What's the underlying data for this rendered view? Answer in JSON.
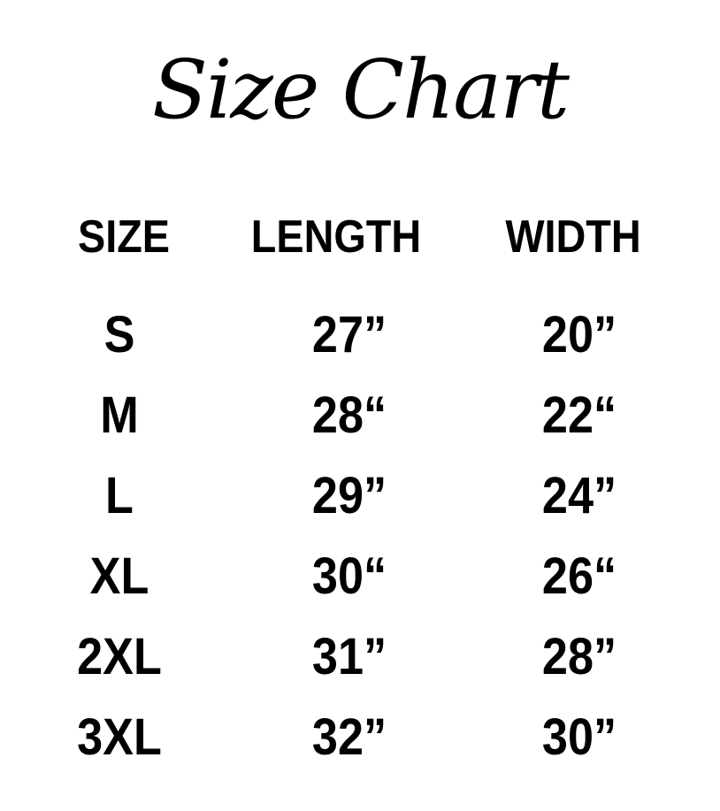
{
  "title": "Size Chart",
  "headers": [
    "SIZE",
    "LENGTH",
    "WIDTH"
  ],
  "rows": [
    [
      "S",
      "27”",
      "20”"
    ],
    [
      "M",
      "28“",
      "22“"
    ],
    [
      "L",
      "29”",
      "24”"
    ],
    [
      "XL",
      "30“",
      "26“"
    ],
    [
      "2XL",
      "31”",
      "28”"
    ],
    [
      "3XL",
      "32”",
      "30”"
    ]
  ]
}
